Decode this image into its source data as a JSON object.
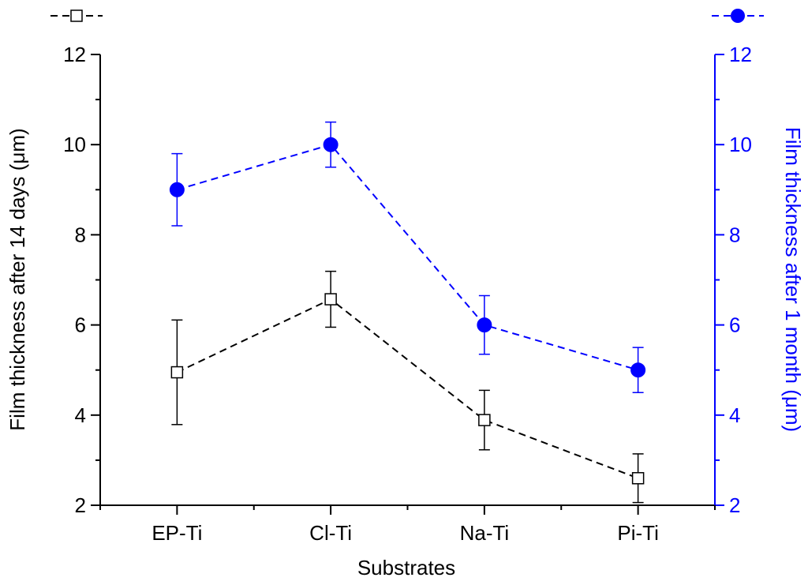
{
  "chart_data": {
    "type": "line",
    "categories": [
      "EP-Ti",
      "Cl-Ti",
      "Na-Ti",
      "Pi-Ti"
    ],
    "xlabel": "Substrates",
    "series": [
      {
        "name": "14 days",
        "axis": "left",
        "color": "#000000",
        "marker": "open-square",
        "linestyle": "dashed",
        "values": [
          4.95,
          6.57,
          3.89,
          2.6
        ],
        "errors": [
          1.16,
          0.62,
          0.66,
          0.54
        ]
      },
      {
        "name": "1 month",
        "axis": "right",
        "color": "#0000ff",
        "marker": "filled-circle",
        "linestyle": "dashed",
        "values": [
          9.0,
          10.0,
          6.0,
          5.0
        ],
        "errors": [
          0.8,
          0.5,
          0.65,
          0.5
        ]
      }
    ],
    "y_left": {
      "label": "Film thickness after 14 days (μm)",
      "lim": [
        2,
        12
      ],
      "ticks": [
        2,
        4,
        6,
        8,
        10,
        12
      ],
      "color": "#000000"
    },
    "y_right": {
      "label": "Film thickness after 1 month (μm)",
      "lim": [
        2,
        12
      ],
      "ticks": [
        2,
        4,
        6,
        8,
        10,
        12
      ],
      "color": "#0000ff"
    },
    "legend": [
      {
        "series": 0,
        "position": "top-left"
      },
      {
        "series": 1,
        "position": "top-right"
      }
    ]
  }
}
